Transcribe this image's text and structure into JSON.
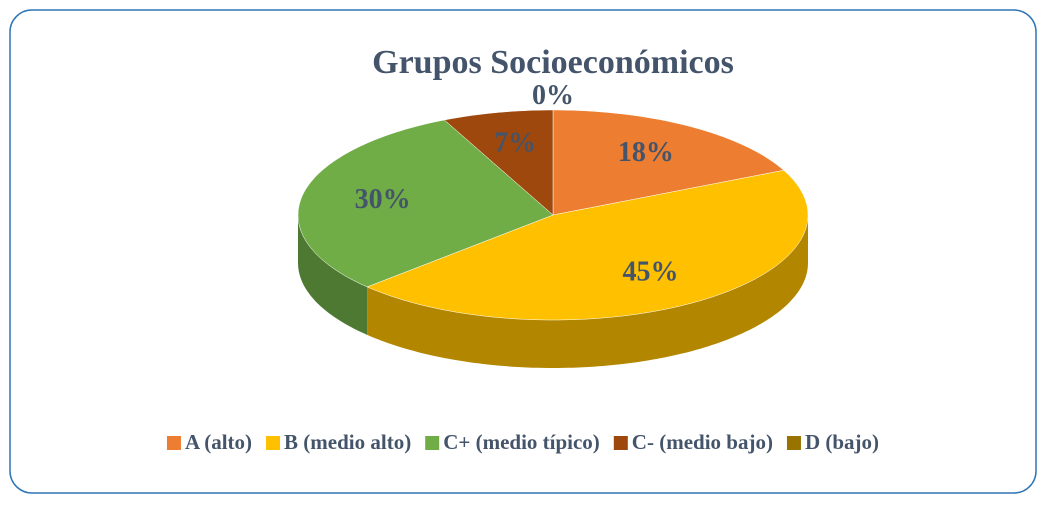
{
  "chart_data": {
    "type": "pie",
    "title": "Grupos Socioeconómicos",
    "categories": [
      "A (alto)",
      "B (medio alto)",
      "C+ (medio típico)",
      "C- (medio bajo)",
      "D (bajo)"
    ],
    "values": [
      18,
      45,
      30,
      7,
      0
    ],
    "value_labels": [
      "18%",
      "45%",
      "30%",
      "7%",
      "0%"
    ],
    "colors": [
      "#ED7D31",
      "#FFC000",
      "#70AD47",
      "#9E480E",
      "#997300"
    ]
  }
}
